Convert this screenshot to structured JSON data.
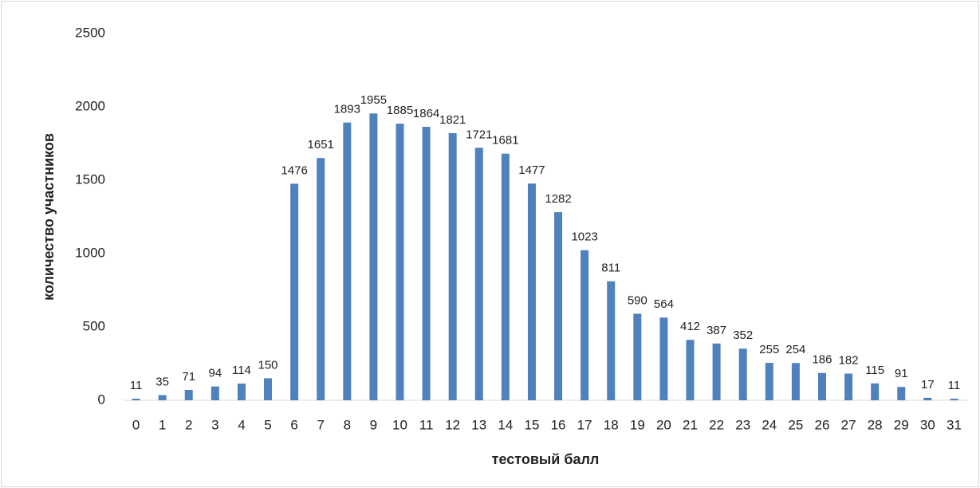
{
  "chart_data": {
    "type": "bar",
    "x_label": "тестовый балл",
    "y_label": "количество участников",
    "categories": [
      "0",
      "1",
      "2",
      "3",
      "4",
      "5",
      "6",
      "7",
      "8",
      "9",
      "10",
      "11",
      "12",
      "13",
      "14",
      "15",
      "16",
      "17",
      "18",
      "19",
      "20",
      "21",
      "22",
      "23",
      "24",
      "25",
      "26",
      "27",
      "28",
      "29",
      "30",
      "31"
    ],
    "values": [
      11,
      35,
      71,
      94,
      114,
      150,
      1476,
      1651,
      1893,
      1955,
      1885,
      1864,
      1821,
      1721,
      1681,
      1477,
      1282,
      1023,
      811,
      590,
      564,
      412,
      387,
      352,
      255,
      254,
      186,
      182,
      115,
      91,
      17,
      11
    ],
    "color": "#4f81bd",
    "ylim": [
      0,
      2500
    ],
    "yticks": [
      0,
      500,
      1000,
      1500,
      2000,
      2500
    ],
    "grid": false
  }
}
